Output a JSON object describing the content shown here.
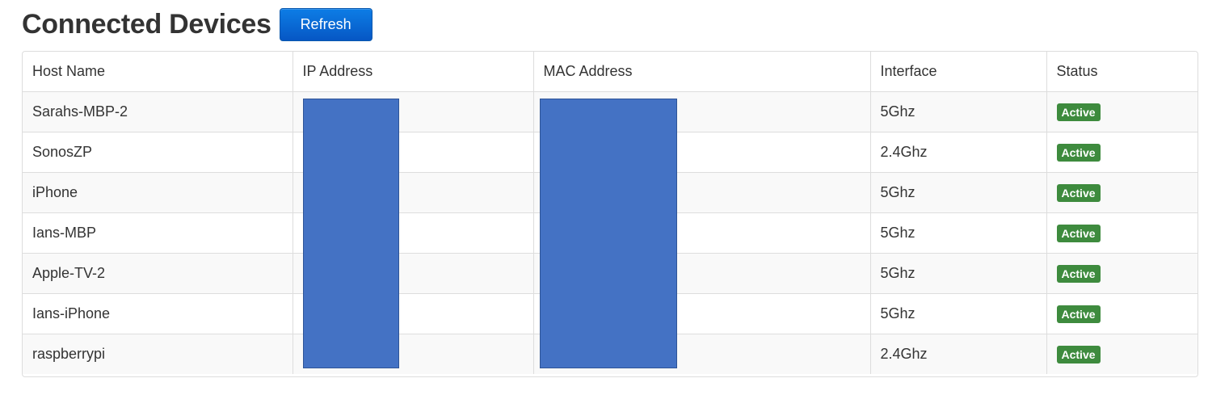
{
  "header": {
    "title": "Connected Devices",
    "refresh_label": "Refresh"
  },
  "colors": {
    "accent": "#0d7de6",
    "active_badge": "#3e8b3e",
    "redaction": "#4472c4"
  },
  "table": {
    "columns": [
      "Host Name",
      "IP Address",
      "MAC Address",
      "Interface",
      "Status"
    ],
    "rows": [
      {
        "host": "Sarahs-MBP-2",
        "ip": "",
        "mac": "",
        "interface": "5Ghz",
        "status": "Active"
      },
      {
        "host": "SonosZP",
        "ip": "",
        "mac": "",
        "interface": "2.4Ghz",
        "status": "Active"
      },
      {
        "host": "iPhone",
        "ip": "",
        "mac": "",
        "interface": "5Ghz",
        "status": "Active"
      },
      {
        "host": "Ians-MBP",
        "ip": "",
        "mac": "",
        "interface": "5Ghz",
        "status": "Active"
      },
      {
        "host": "Apple-TV-2",
        "ip": "",
        "mac": "",
        "interface": "5Ghz",
        "status": "Active"
      },
      {
        "host": "Ians-iPhone",
        "ip": "",
        "mac": "",
        "interface": "5Ghz",
        "status": "Active"
      },
      {
        "host": "raspberrypi",
        "ip": "",
        "mac": "",
        "interface": "2.4Ghz",
        "status": "Active"
      }
    ]
  }
}
